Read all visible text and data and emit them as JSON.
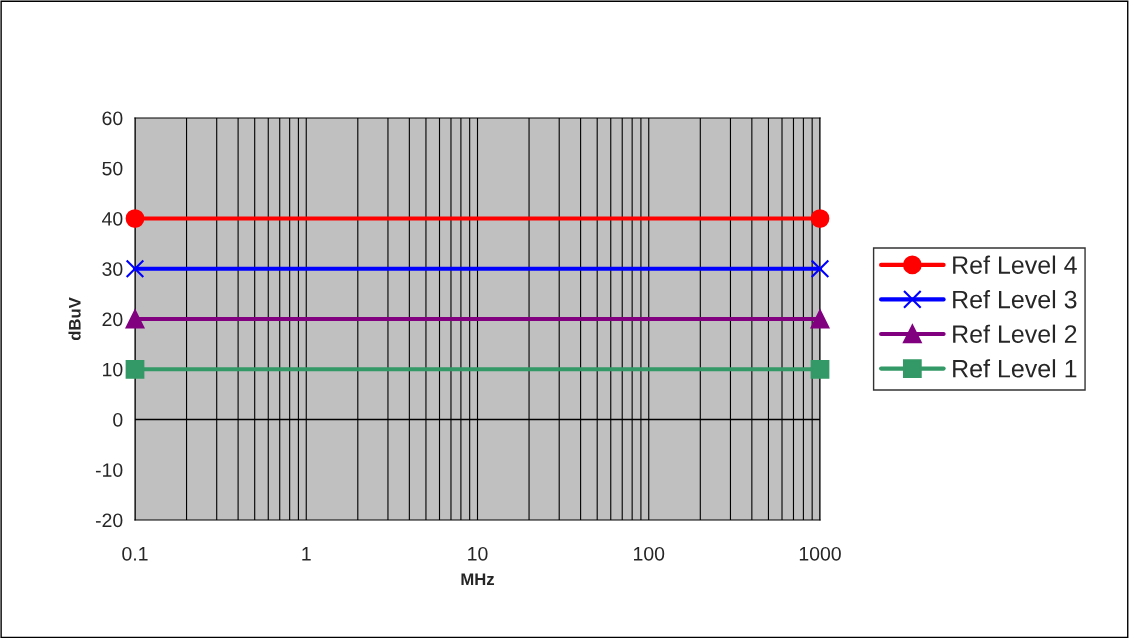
{
  "chart_data": {
    "type": "line",
    "xlabel": "MHz",
    "ylabel": "dBuV",
    "log": "x",
    "xlim": [
      0.1,
      1000
    ],
    "ylim": [
      -20,
      60
    ],
    "xticks": [
      0.1,
      {
        "value": 0.2,
        "label": null
      },
      {
        "value": 0.3,
        "label": null
      },
      {
        "value": 0.4,
        "label": null
      },
      {
        "value": 0.5,
        "label": null
      },
      {
        "value": 0.6,
        "label": null
      },
      {
        "value": 0.7,
        "label": null
      },
      {
        "value": 0.8,
        "label": null
      },
      {
        "value": 0.9,
        "label": null
      },
      1,
      {
        "value": 2,
        "label": null
      },
      {
        "value": 3,
        "label": null
      },
      {
        "value": 4,
        "label": null
      },
      {
        "value": 5,
        "label": null
      },
      {
        "value": 6,
        "label": null
      },
      {
        "value": 7,
        "label": null
      },
      {
        "value": 8,
        "label": null
      },
      {
        "value": 9,
        "label": null
      },
      10,
      {
        "value": 20,
        "label": null
      },
      {
        "value": 30,
        "label": null
      },
      {
        "value": 40,
        "label": null
      },
      {
        "value": 50,
        "label": null
      },
      {
        "value": 60,
        "label": null
      },
      {
        "value": 70,
        "label": null
      },
      {
        "value": 80,
        "label": null
      },
      {
        "value": 90,
        "label": null
      },
      100,
      {
        "value": 200,
        "label": null
      },
      {
        "value": 300,
        "label": null
      },
      {
        "value": 400,
        "label": null
      },
      {
        "value": 500,
        "label": null
      },
      {
        "value": 600,
        "label": null
      },
      {
        "value": 700,
        "label": null
      },
      {
        "value": 800,
        "label": null
      },
      {
        "value": 900,
        "label": null
      },
      1000
    ],
    "yticks": [
      -20,
      -10,
      0,
      10,
      20,
      30,
      40,
      50,
      60
    ],
    "grid": "x",
    "legend": "right",
    "line_style": "solid",
    "ref_lines": [
      {
        "axis": "y",
        "value": 0,
        "color": "#000000"
      }
    ],
    "x": [
      0.1,
      1000
    ],
    "series": [
      {
        "name": "Ref Level 4",
        "color": "#ff0000",
        "marker": "circle",
        "values": [
          40,
          40
        ]
      },
      {
        "name": "Ref Level 3",
        "color": "#0000ff",
        "marker": "cross",
        "values": [
          30,
          30
        ]
      },
      {
        "name": "Ref Level 2",
        "color": "#800080",
        "marker": "triangle",
        "values": [
          20,
          20
        ]
      },
      {
        "name": "Ref Level 1",
        "color": "#339966",
        "marker": "square",
        "values": [
          10,
          10
        ]
      }
    ]
  }
}
